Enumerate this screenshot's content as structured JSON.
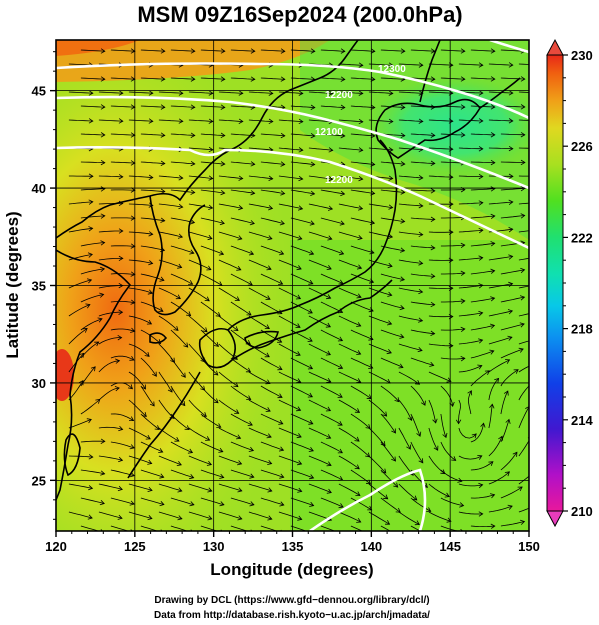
{
  "title": "MSM 09Z16Sep2024 (200.0hPa)",
  "x_axis": {
    "label": "Longitude (degrees)",
    "ticks": [
      "120",
      "125",
      "130",
      "135",
      "140",
      "145",
      "150"
    ],
    "range": [
      120,
      150
    ]
  },
  "y_axis": {
    "label": "Latitude  (degrees)",
    "ticks": [
      "25",
      "30",
      "35",
      "40",
      "45"
    ],
    "range": [
      22.4,
      47.6
    ]
  },
  "colorbar": {
    "ticks": [
      "230",
      "226",
      "222",
      "218",
      "214",
      "210"
    ],
    "range": [
      210,
      230
    ],
    "colors": [
      "#e8189c",
      "#c010c8",
      "#6018d0",
      "#1030e0",
      "#0c78f0",
      "#08c4f0",
      "#10e0b0",
      "#20e070",
      "#40e020",
      "#90e020",
      "#d8e020",
      "#f0c020",
      "#f09010",
      "#f05010",
      "#e82818"
    ]
  },
  "contours": {
    "color": "#ffffff",
    "labels": [
      "12300",
      "12200",
      "12100",
      "12200"
    ]
  },
  "credits": {
    "line1": "Drawing by DCL (https://www.gfd−dennou.org/library/dcl/)",
    "line2": "Data from http://database.rish.kyoto−u.ac.jp/arch/jmadata/"
  },
  "map_colors": {
    "warm": "#f09a12",
    "mid": "#c8e020",
    "cool": "#78e028",
    "cyan": "#30e8a0",
    "grid": "#000000",
    "coast": "#000000"
  }
}
